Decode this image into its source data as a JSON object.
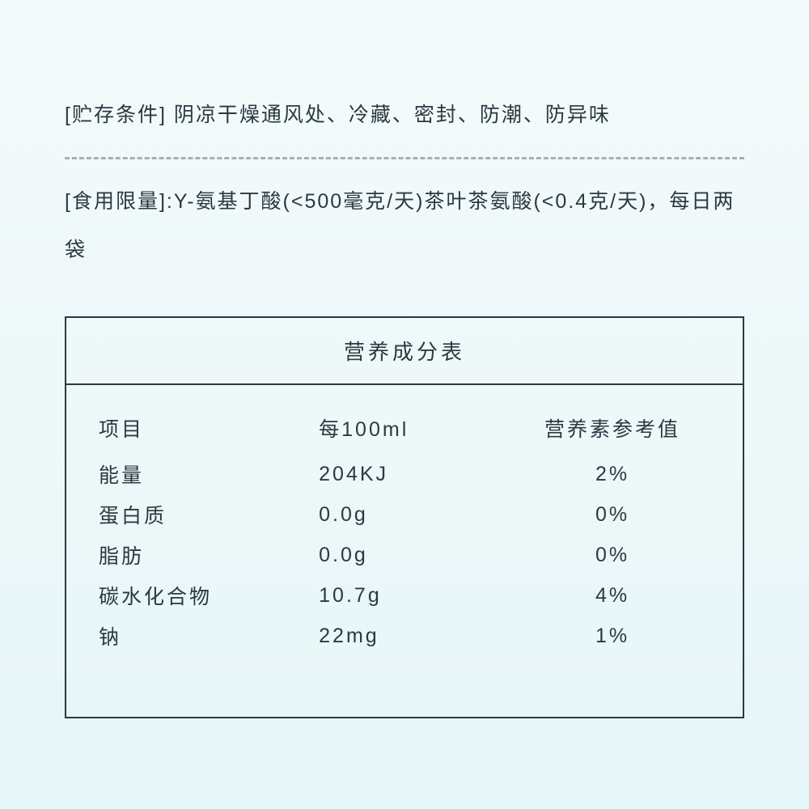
{
  "storage": {
    "label": "[贮存条件]",
    "text": "阴凉干燥通风处、冷藏、密封、防潮、防异味"
  },
  "limit": {
    "label": "[食用限量]:",
    "text": "Y-氨基丁酸(<500毫克/天)茶叶茶氨酸(<0.4克/天)，每日两袋"
  },
  "table": {
    "title": "营养成分表",
    "columns": [
      "项目",
      "每100ml",
      "营养素参考值"
    ],
    "rows": [
      [
        "能量",
        "204KJ",
        "2%"
      ],
      [
        "蛋白质",
        "0.0g",
        "0%"
      ],
      [
        "脂肪",
        "0.0g",
        "0%"
      ],
      [
        "碳水化合物",
        "10.7g",
        "4%"
      ],
      [
        "钠",
        "22mg",
        "1%"
      ]
    ],
    "border_color": "#2a3a42",
    "font_size_pt": 19
  },
  "colors": {
    "text": "#2a3a42",
    "bg_top": "#f4fafb",
    "bg_bottom": "#e7f6f7",
    "divider": "#9fb4bc"
  }
}
